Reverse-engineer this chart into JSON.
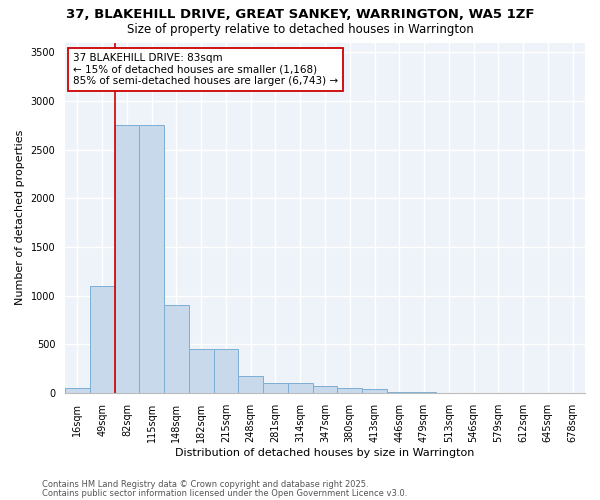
{
  "title1": "37, BLAKEHILL DRIVE, GREAT SANKEY, WARRINGTON, WA5 1ZF",
  "title2": "Size of property relative to detached houses in Warrington",
  "xlabel": "Distribution of detached houses by size in Warrington",
  "ylabel": "Number of detached properties",
  "bar_color": "#c9d9ec",
  "bar_edge_color": "#7bafd4",
  "bg_color": "#eef3fa",
  "grid_color": "#ffffff",
  "categories": [
    "16sqm",
    "49sqm",
    "82sqm",
    "115sqm",
    "148sqm",
    "182sqm",
    "215sqm",
    "248sqm",
    "281sqm",
    "314sqm",
    "347sqm",
    "380sqm",
    "413sqm",
    "446sqm",
    "479sqm",
    "513sqm",
    "546sqm",
    "579sqm",
    "612sqm",
    "645sqm",
    "678sqm"
  ],
  "values": [
    50,
    1100,
    2750,
    2750,
    900,
    450,
    450,
    175,
    100,
    100,
    70,
    50,
    35,
    12,
    5,
    3,
    2,
    1,
    1,
    0,
    0
  ],
  "property_line_color": "#cc0000",
  "annotation_text": "37 BLAKEHILL DRIVE: 83sqm\n← 15% of detached houses are smaller (1,168)\n85% of semi-detached houses are larger (6,743) →",
  "ylim": [
    0,
    3600
  ],
  "yticks": [
    0,
    500,
    1000,
    1500,
    2000,
    2500,
    3000,
    3500
  ],
  "footnote1": "Contains HM Land Registry data © Crown copyright and database right 2025.",
  "footnote2": "Contains public sector information licensed under the Open Government Licence v3.0.",
  "title1_fontsize": 9.5,
  "title2_fontsize": 8.5,
  "xlabel_fontsize": 8,
  "ylabel_fontsize": 8,
  "tick_fontsize": 7,
  "annotation_fontsize": 7.5,
  "footnote_fontsize": 6
}
